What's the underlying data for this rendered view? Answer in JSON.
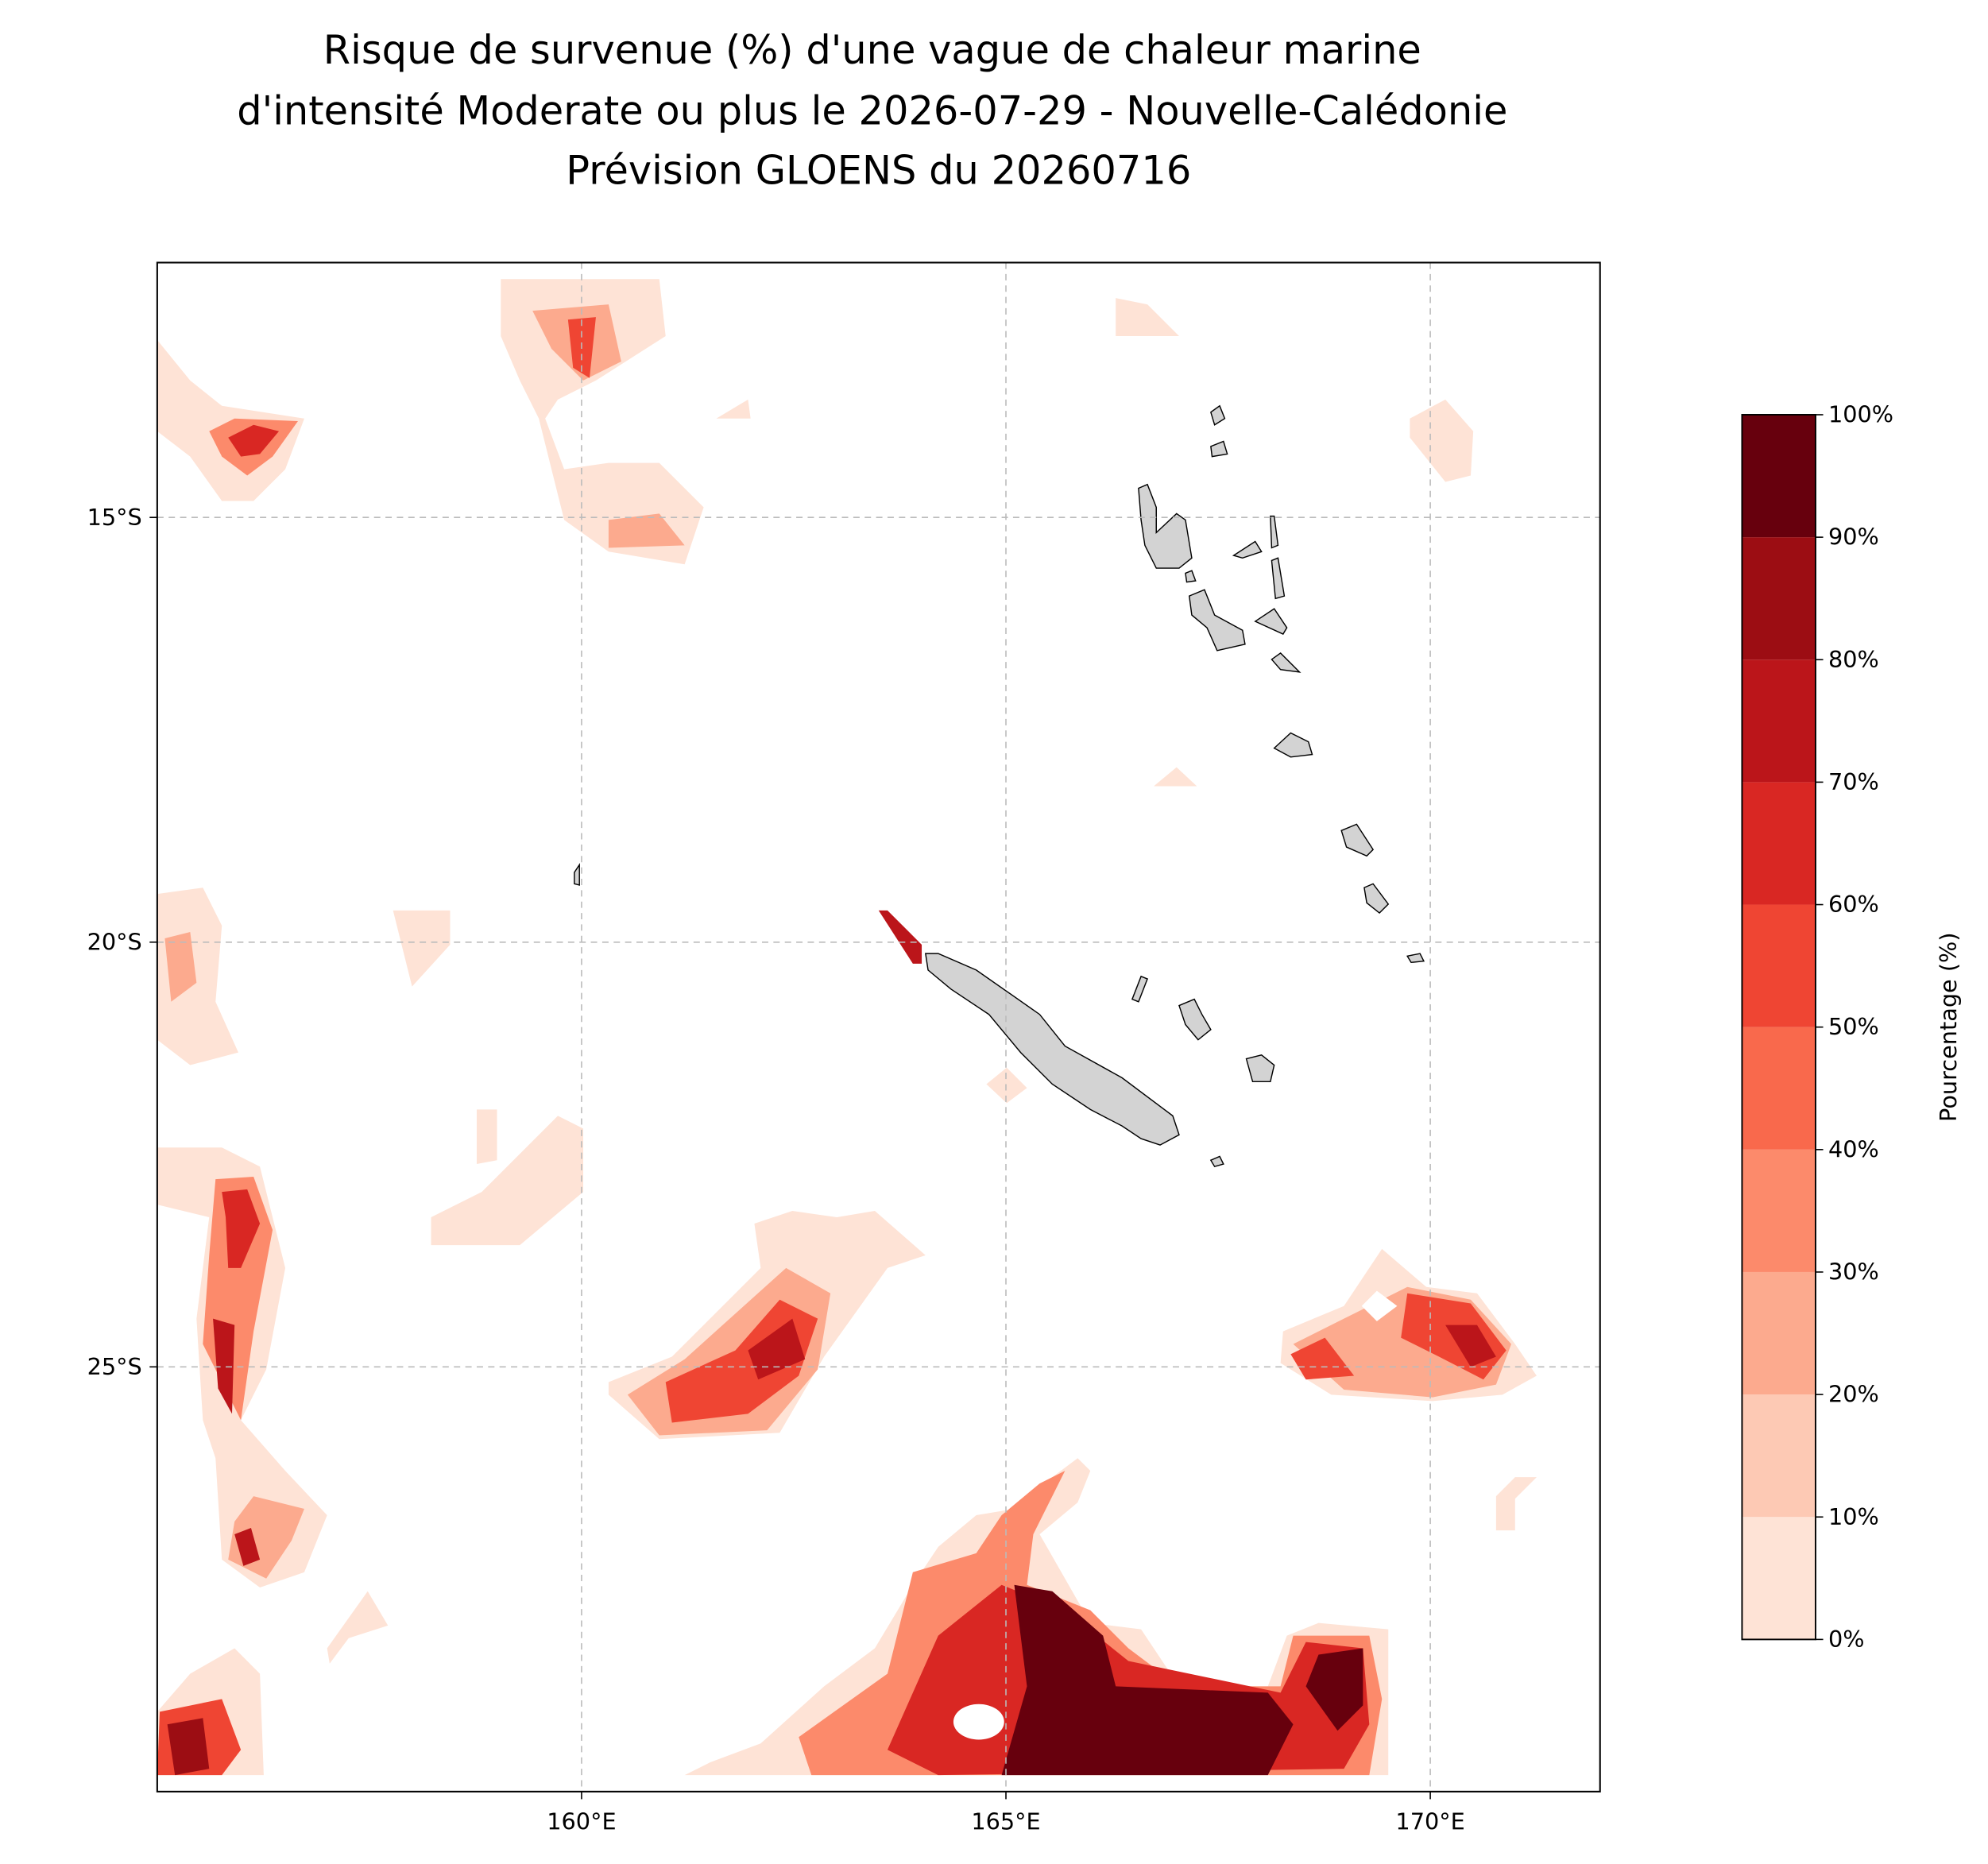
{
  "chart_data": {
    "type": "map",
    "title": [
      "Risque de survenue (%) d'une vague de chaleur marine",
      "d'intensité Moderate ou plus le 2026-07-29 - Nouvelle-Calédonie",
      "Prévision GLOENS du 20260716"
    ],
    "xlim": [
      155,
      172
    ],
    "ylim": [
      -30,
      -12
    ],
    "xticks": [
      {
        "value": 160,
        "label": "160°E"
      },
      {
        "value": 165,
        "label": "165°E"
      },
      {
        "value": 170,
        "label": "170°E"
      }
    ],
    "yticks": [
      {
        "value": -25,
        "label": "25°S"
      },
      {
        "value": -20,
        "label": "20°S"
      },
      {
        "value": -15,
        "label": "15°S"
      }
    ],
    "grid": true,
    "colorbar": {
      "label": "Pourcentage (%)",
      "ticks": [
        {
          "value": 0,
          "label": "0%"
        },
        {
          "value": 10,
          "label": "10%"
        },
        {
          "value": 20,
          "label": "20%"
        },
        {
          "value": 30,
          "label": "30%"
        },
        {
          "value": 40,
          "label": "40%"
        },
        {
          "value": 50,
          "label": "50%"
        },
        {
          "value": 60,
          "label": "60%"
        },
        {
          "value": 70,
          "label": "70%"
        },
        {
          "value": 80,
          "label": "80%"
        },
        {
          "value": 90,
          "label": "90%"
        },
        {
          "value": 100,
          "label": "100%"
        }
      ],
      "colors": [
        "#fff5f0",
        "#fee3d6",
        "#fdc9b4",
        "#fcaa8e",
        "#fc8a6b",
        "#f9694c",
        "#ef4533",
        "#d92723",
        "#bb151a",
        "#9c0d13",
        "#67000d"
      ]
    }
  }
}
